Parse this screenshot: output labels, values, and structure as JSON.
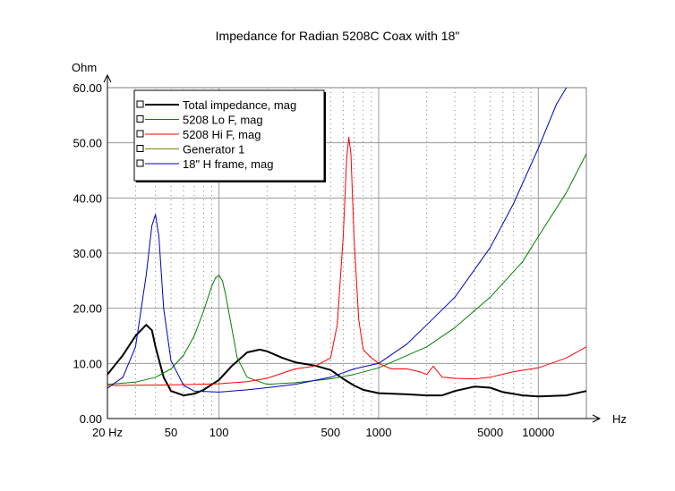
{
  "chart_data": {
    "type": "line",
    "title": "Impedance for Radian 5208C Coax with 18\"",
    "ylabel": "Ohm",
    "xlabel": "Hz",
    "x_scale": "log",
    "xlim": [
      20,
      20000
    ],
    "ylim": [
      0,
      60
    ],
    "grid": true,
    "legend_position": "top-left",
    "y_ticks": [
      "0.00",
      "10.00",
      "20.00",
      "30.00",
      "40.00",
      "50.00",
      "60.00"
    ],
    "x_ticks": [
      {
        "value": 20,
        "label": "20 Hz"
      },
      {
        "value": 50,
        "label": "50"
      },
      {
        "value": 100,
        "label": "100"
      },
      {
        "value": 500,
        "label": "500"
      },
      {
        "value": 1000,
        "label": "1000"
      },
      {
        "value": 5000,
        "label": "5000"
      },
      {
        "value": 10000,
        "label": "10000"
      }
    ],
    "series": [
      {
        "name": "Total impedance, mag",
        "color": "#000000",
        "width": 2,
        "x": [
          20,
          25,
          30,
          35,
          38,
          40,
          45,
          50,
          60,
          70,
          80,
          100,
          120,
          150,
          180,
          200,
          250,
          300,
          400,
          500,
          600,
          700,
          800,
          1000,
          1500,
          2000,
          2500,
          3000,
          4000,
          5000,
          6000,
          8000,
          10000,
          15000,
          20000
        ],
        "y": [
          8.0,
          11.5,
          15.0,
          17.0,
          16.0,
          13.0,
          7.5,
          5.0,
          4.2,
          4.5,
          5.2,
          7.0,
          9.5,
          12.0,
          12.5,
          12.2,
          11.0,
          10.2,
          9.6,
          8.8,
          7.2,
          6.0,
          5.2,
          4.6,
          4.4,
          4.2,
          4.2,
          5.0,
          5.8,
          5.6,
          4.8,
          4.2,
          4.0,
          4.2,
          5.0
        ]
      },
      {
        "name": "5208 Lo F, mag",
        "color": "#008000",
        "width": 1,
        "x": [
          20,
          30,
          40,
          50,
          60,
          70,
          80,
          90,
          95,
          100,
          105,
          110,
          120,
          130,
          150,
          200,
          300,
          500,
          700,
          1000,
          2000,
          3000,
          5000,
          8000,
          10000,
          15000,
          20000
        ],
        "y": [
          6.2,
          6.6,
          7.5,
          9.0,
          11.5,
          15.0,
          19.5,
          24.0,
          25.5,
          26.0,
          25.0,
          22.5,
          16.5,
          11.0,
          7.5,
          6.2,
          6.5,
          7.2,
          8.0,
          9.2,
          13.0,
          16.5,
          22.0,
          28.5,
          33.0,
          41.0,
          48.0
        ]
      },
      {
        "name": "5208 Hi F, mag",
        "color": "#ff0000",
        "width": 1,
        "x": [
          20,
          50,
          100,
          150,
          200,
          300,
          400,
          500,
          550,
          600,
          630,
          650,
          670,
          700,
          750,
          800,
          900,
          1000,
          1200,
          1500,
          1800,
          2000,
          2200,
          2500,
          3000,
          4000,
          5000,
          7000,
          10000,
          15000,
          20000
        ],
        "y": [
          6.0,
          6.1,
          6.3,
          6.7,
          7.3,
          9.0,
          9.5,
          11.0,
          17.0,
          33.0,
          47.0,
          51.0,
          48.0,
          33.0,
          18.0,
          12.5,
          11.0,
          10.0,
          9.0,
          9.0,
          8.5,
          8.0,
          9.5,
          7.5,
          7.3,
          7.2,
          7.5,
          8.5,
          9.2,
          11.0,
          13.0
        ]
      },
      {
        "name": "Generator 1",
        "color": "#808000",
        "width": 1,
        "x": [],
        "y": []
      },
      {
        "name": "18\" H frame, mag",
        "color": "#0000c0",
        "width": 1,
        "x": [
          20,
          25,
          30,
          35,
          38,
          40,
          42,
          45,
          50,
          60,
          70,
          100,
          150,
          200,
          300,
          500,
          700,
          1000,
          1500,
          2000,
          3000,
          5000,
          7000,
          10000,
          13000,
          15000
        ],
        "y": [
          5.5,
          7.5,
          13.0,
          26.0,
          35.0,
          37.0,
          33.0,
          20.0,
          10.5,
          6.0,
          5.0,
          4.8,
          5.2,
          5.6,
          6.2,
          7.5,
          9.0,
          10.0,
          13.5,
          17.0,
          22.0,
          31.0,
          39.0,
          49.0,
          57.0,
          61.0
        ]
      }
    ]
  }
}
